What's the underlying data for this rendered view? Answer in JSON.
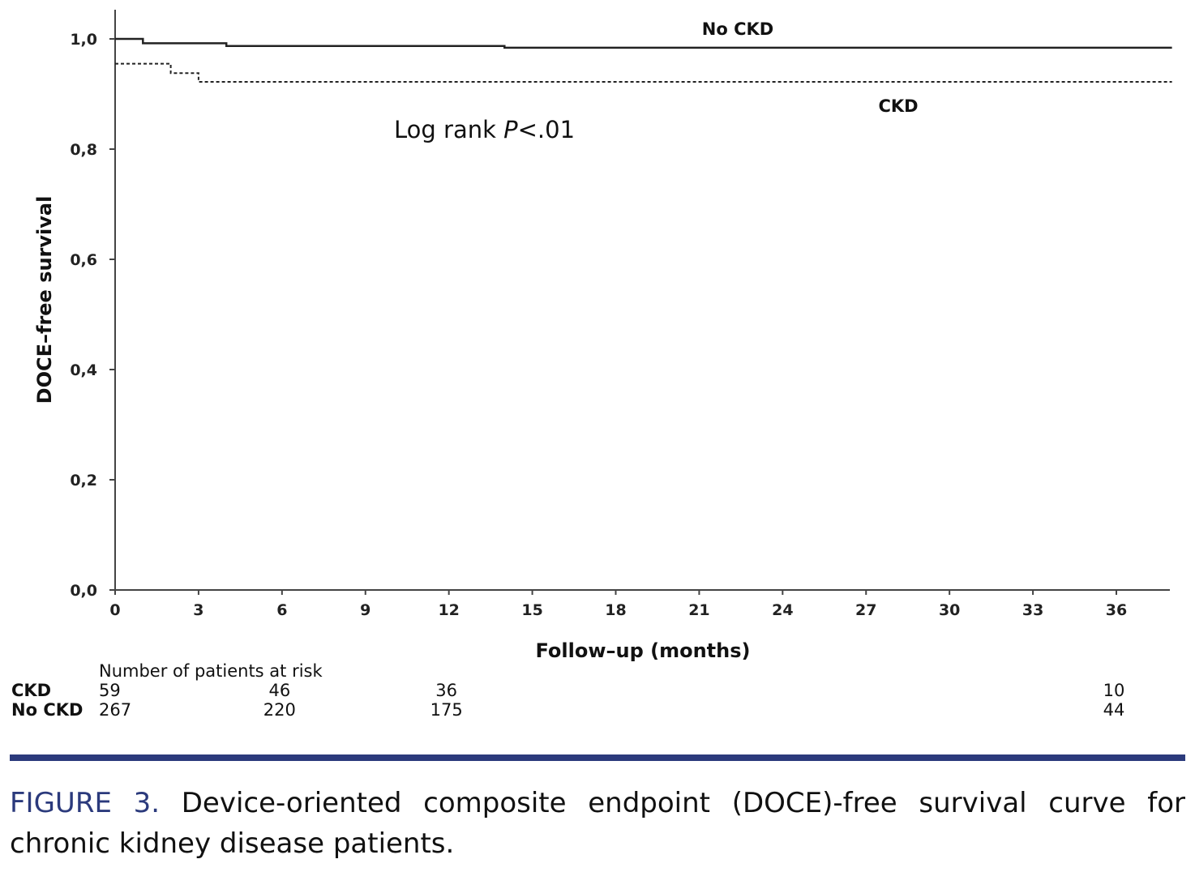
{
  "chart_data": {
    "type": "line",
    "ylabel": "DOCE–free survival",
    "xlabel": "Follow–up (months)",
    "xlim": [
      0,
      38
    ],
    "ylim": [
      0,
      1
    ],
    "x_ticks": [
      "0",
      "3",
      "6",
      "9",
      "12",
      "15",
      "18",
      "21",
      "24",
      "27",
      "30",
      "33",
      "36"
    ],
    "y_ticks": [
      "0,0",
      "0,2",
      "0,4",
      "0,6",
      "0,8",
      "1,0"
    ],
    "grid": false,
    "annotation": {
      "prefix": "Log rank ",
      "italic": "P",
      "suffix": "<.01"
    },
    "series": [
      {
        "name": "No CKD",
        "style": "solid",
        "x": [
          0,
          1,
          1,
          4,
          4,
          14,
          14,
          38
        ],
        "y": [
          1.0,
          1.0,
          0.992,
          0.992,
          0.987,
          0.987,
          0.984,
          0.984
        ]
      },
      {
        "name": "CKD",
        "style": "dashed",
        "x": [
          0,
          2,
          2,
          3,
          3,
          38
        ],
        "y": [
          0.955,
          0.955,
          0.938,
          0.938,
          0.922,
          0.922
        ]
      }
    ],
    "risk_table": {
      "title": "Number of patients at risk",
      "time_points": [
        0,
        6,
        12,
        36
      ],
      "rows": [
        {
          "label": "CKD",
          "values": [
            "59",
            "46",
            "36",
            "10"
          ]
        },
        {
          "label": "No CKD",
          "values": [
            "267",
            "220",
            "175",
            "44"
          ]
        }
      ]
    }
  },
  "caption": {
    "label": "FIGURE 3.",
    "text": " Device-oriented composite endpoint (DOCE)-free survival curve for chronic kidney disease patients."
  }
}
